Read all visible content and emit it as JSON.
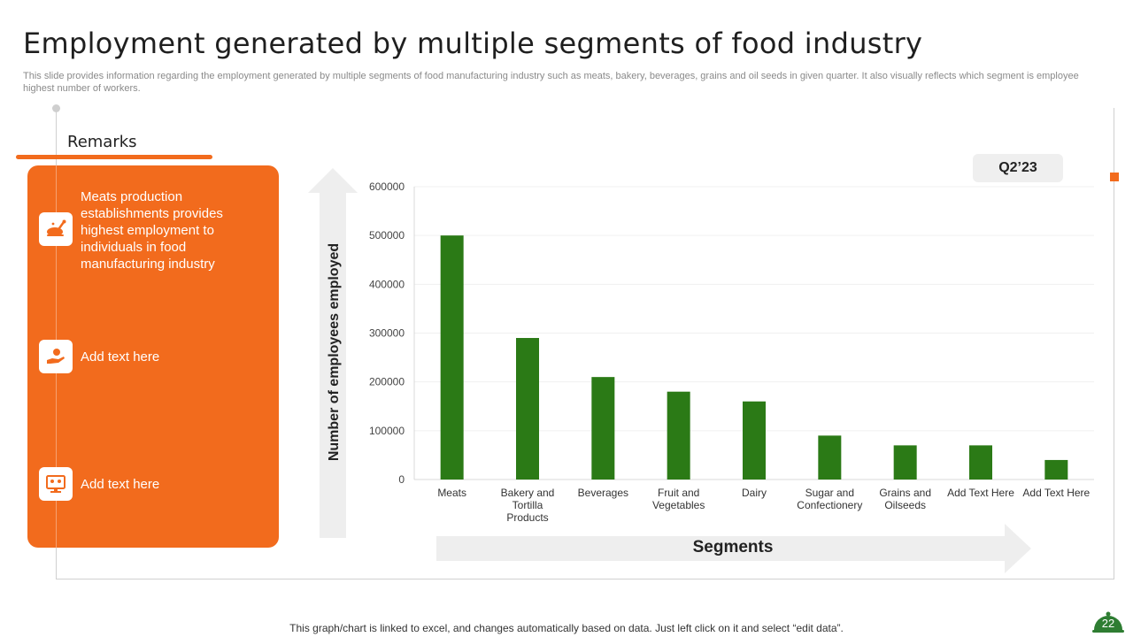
{
  "title": "Employment generated by multiple segments of food industry",
  "subtitle": "This slide provides information regarding the employment generated by multiple segments of food manufacturing industry such as meats, bakery, beverages, grains and oil  seeds in given quarter. It also visually reflects which segment is employee highest number of workers.",
  "remarks": {
    "title": "Remarks",
    "items": [
      {
        "icon": "roast-chicken-icon",
        "text": "Meats production establishments provides highest employment to individuals in food manufacturing  industry"
      },
      {
        "icon": "hand-serving-icon",
        "text": "Add text here"
      },
      {
        "icon": "monitor-people-icon",
        "text": "Add text here"
      }
    ]
  },
  "quarter_label": "Q2’23",
  "footer_note": "This graph/chart is linked to excel,  and changes automatically based on data. Just left click on it and select “edit data”.",
  "page_number": "22",
  "colors": {
    "accent": "#F26B1D",
    "bar": "#2B7A16",
    "badge": "#2E7D32"
  },
  "chart_data": {
    "type": "bar",
    "title": "",
    "xlabel": "Segments",
    "ylabel": "Number of employees employed",
    "categories": [
      "Meats",
      "Bakery and Tortilla Products",
      "Beverages",
      "Fruit and Vegetables",
      "Dairy",
      "Sugar and Confectionery",
      "Grains and Oilseeds",
      "Add Text Here",
      "Add Text Here"
    ],
    "category_lines": [
      [
        "Meats"
      ],
      [
        "Bakery and",
        "Tortilla",
        "Products"
      ],
      [
        "Beverages"
      ],
      [
        "Fruit and",
        "Vegetables"
      ],
      [
        "Dairy"
      ],
      [
        "Sugar and",
        "Confectionery"
      ],
      [
        "Grains and",
        "Oilseeds"
      ],
      [
        "Add Text Here"
      ],
      [
        "Add Text Here"
      ]
    ],
    "values": [
      500000,
      290000,
      210000,
      180000,
      160000,
      90000,
      70000,
      70000,
      40000
    ],
    "ylim": [
      0,
      600000
    ],
    "yticks": [
      0,
      100000,
      200000,
      300000,
      400000,
      500000,
      600000
    ],
    "grid": true
  }
}
